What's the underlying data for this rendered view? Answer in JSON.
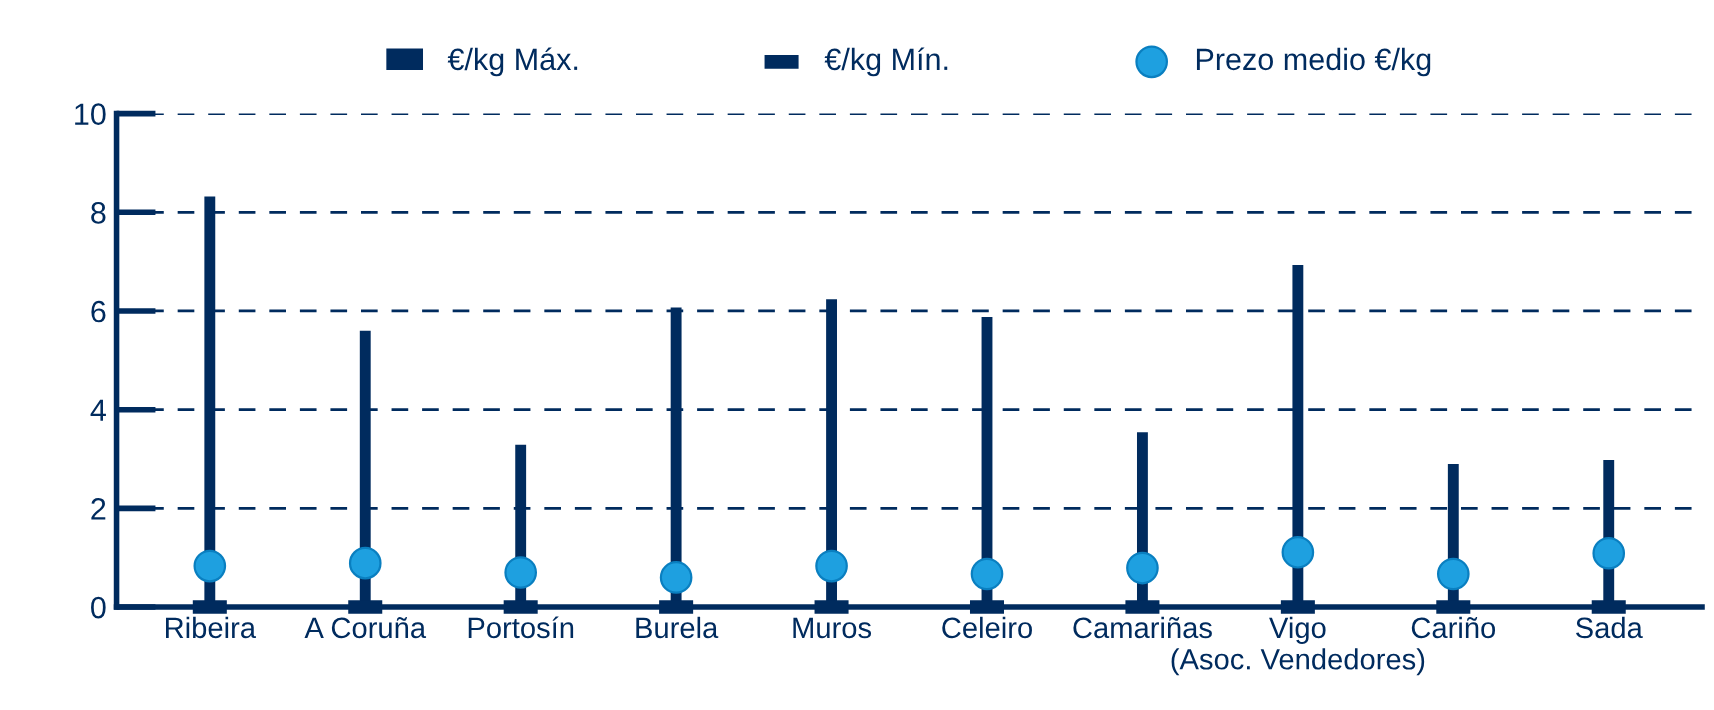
{
  "chart_data": {
    "type": "bar",
    "categories": [
      "Ribeira",
      "A Coruña",
      "Portosín",
      "Burela",
      "Muros",
      "Celeiro",
      "Camariñas",
      "Vigo\n(Asoc. Vendedores)",
      "Cariño",
      "Sada"
    ],
    "series": [
      {
        "name": "€/kg Máx.",
        "color": "#002b5e",
        "values": [
          8.32,
          5.6,
          3.29,
          6.07,
          6.24,
          5.88,
          3.54,
          6.93,
          2.9,
          2.98
        ]
      },
      {
        "name": "€/kg Mín.",
        "type": "scatter",
        "color": "#002b5e",
        "values": [
          0,
          0,
          0,
          0,
          0,
          0,
          0,
          0,
          0,
          0
        ]
      },
      {
        "name": "Prezo medio €/kg",
        "type": "scatter",
        "marker": "circle",
        "color": "#1ea0e0",
        "values": [
          0.83,
          0.89,
          0.7,
          0.6,
          0.83,
          0.67,
          0.79,
          1.11,
          0.67,
          1.09
        ]
      }
    ],
    "ylim": [
      0,
      10
    ],
    "yticks": [
      0,
      2,
      4,
      6,
      8,
      10
    ],
    "grid": "y",
    "legend": "top"
  }
}
